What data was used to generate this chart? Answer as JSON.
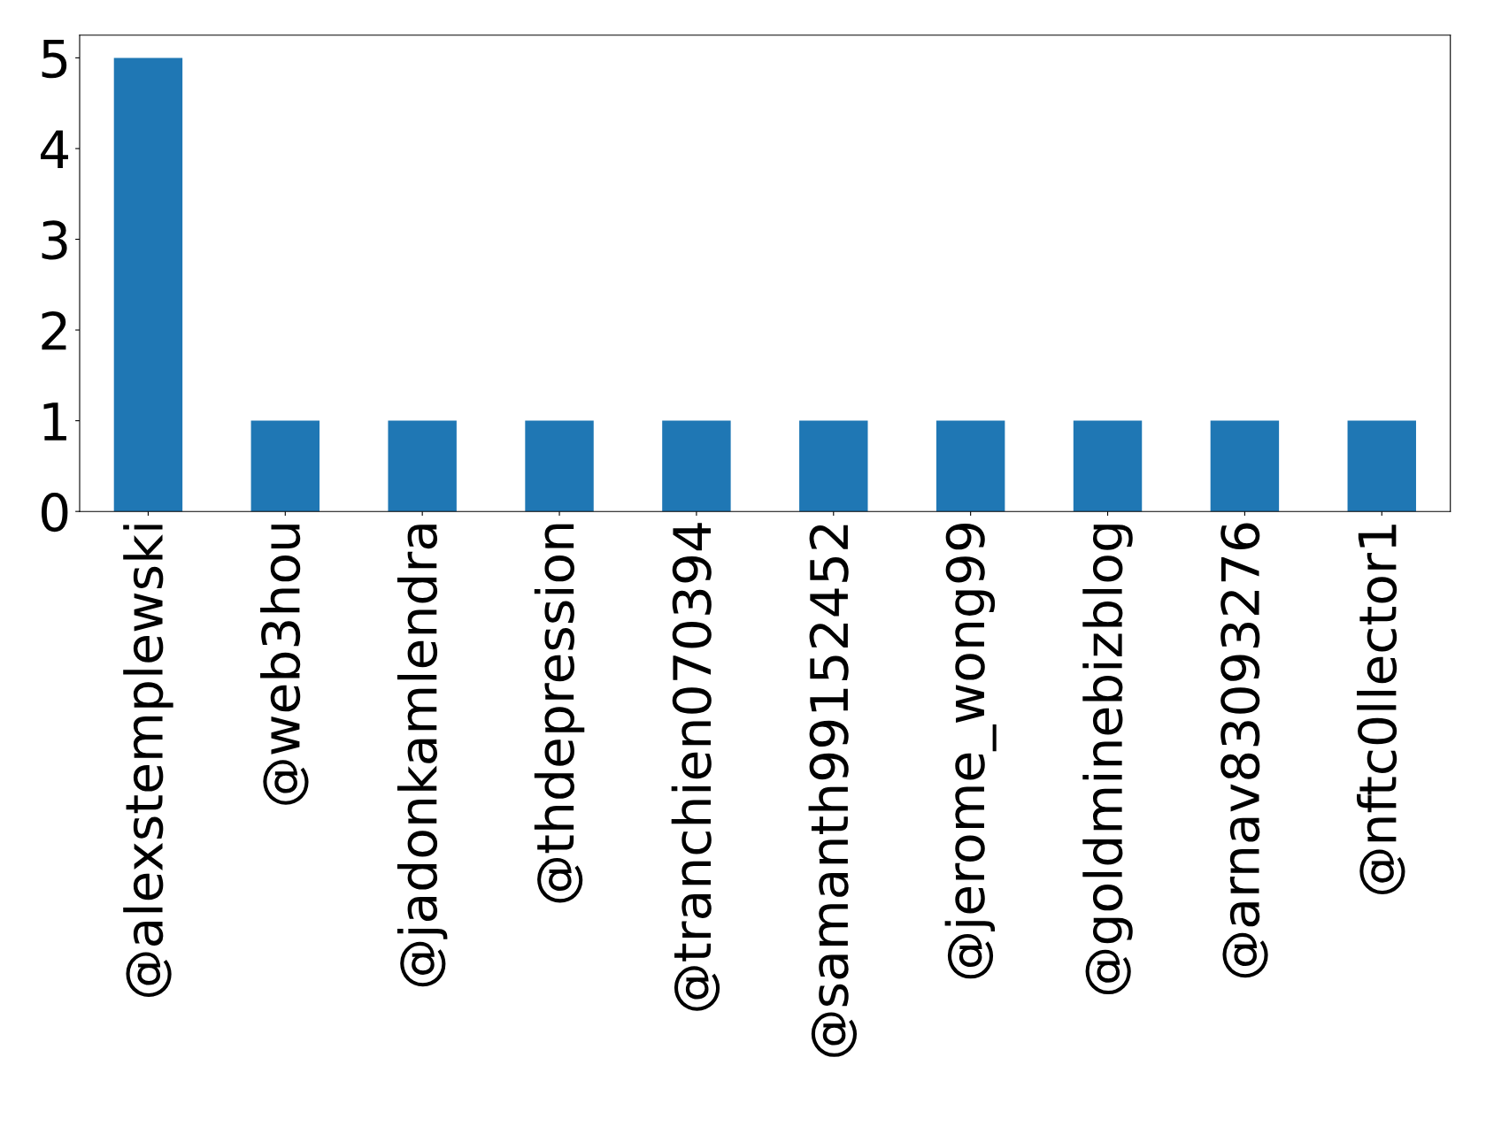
{
  "chart_data": {
    "type": "bar",
    "categories": [
      "@alexstemplewski",
      "@web3hou",
      "@jadonkamlendra",
      "@thdepression",
      "@tranchien070394",
      "@samanth99152452",
      "@jerome_wong99",
      "@goldminebizblog",
      "@arnav83093276",
      "@nftc0llector1"
    ],
    "values": [
      5,
      1,
      1,
      1,
      1,
      1,
      1,
      1,
      1,
      1
    ],
    "color": "#1f77b4",
    "ylim": [
      0,
      5.25
    ],
    "yticks": [
      0,
      1,
      2,
      3,
      4,
      5
    ],
    "grid": false,
    "legend": false
  }
}
